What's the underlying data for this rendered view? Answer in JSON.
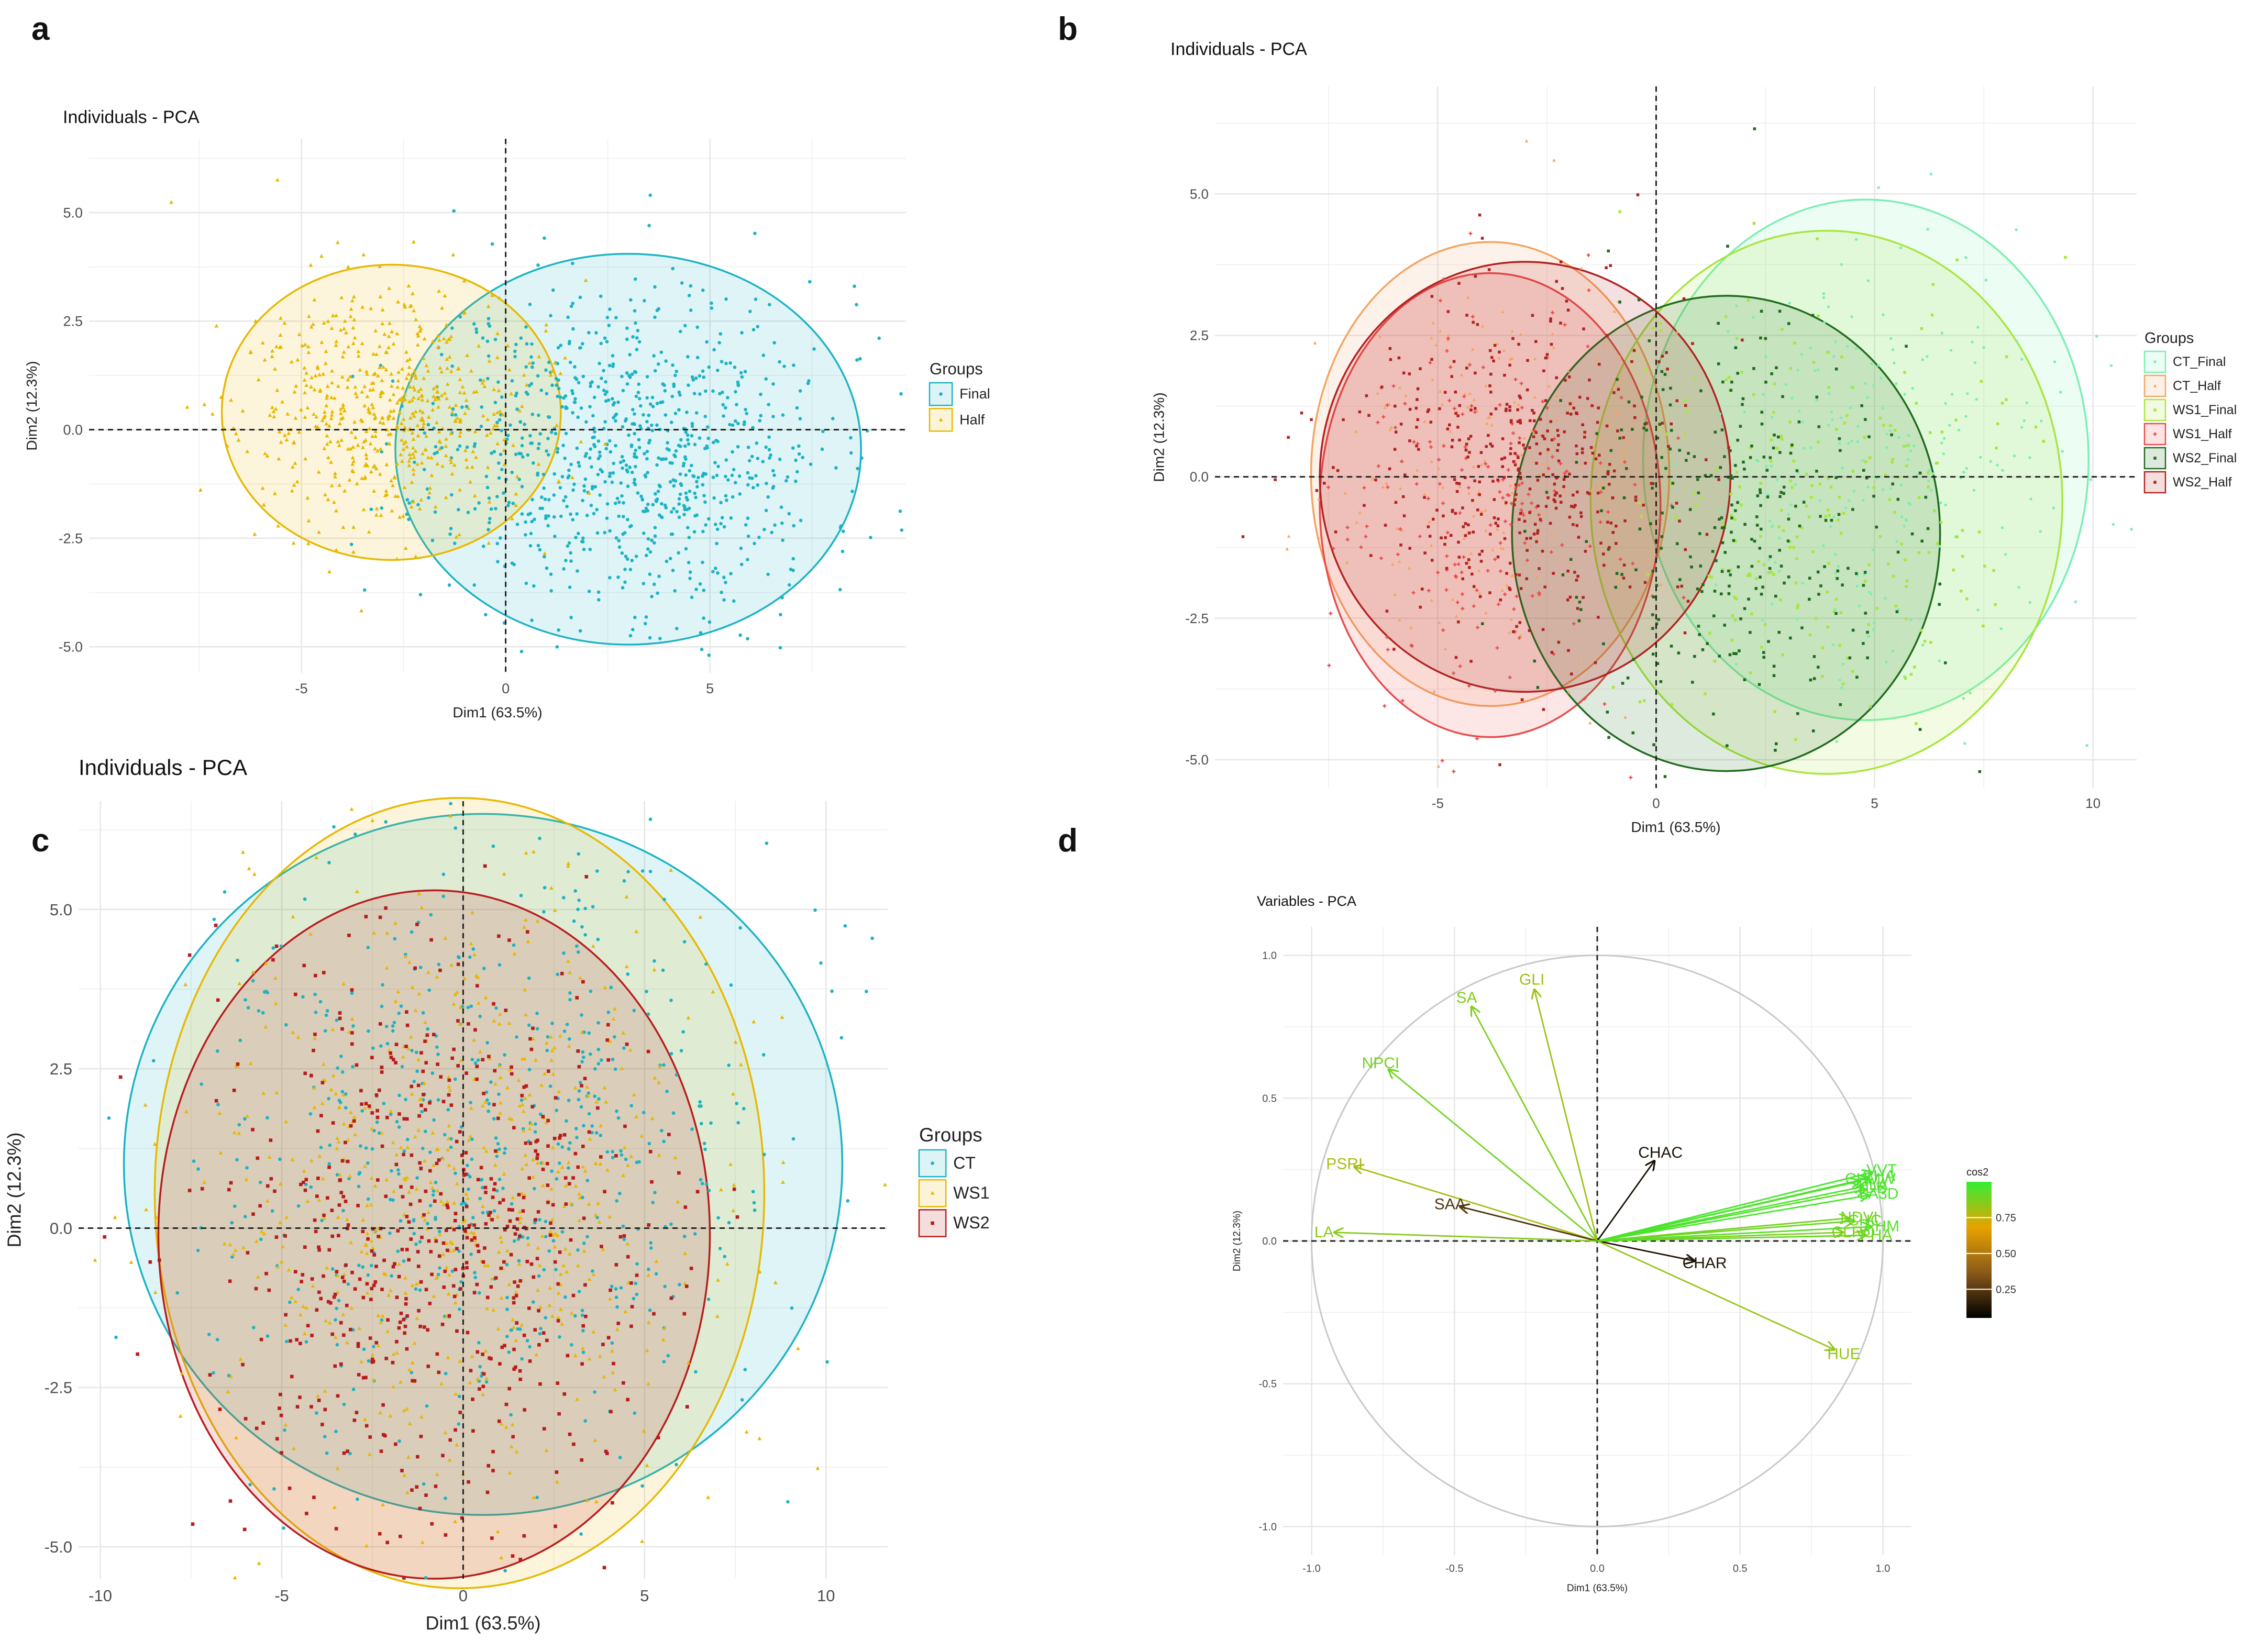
{
  "panel_labels": [
    "a",
    "b",
    "c",
    "d"
  ],
  "chart_data": [
    {
      "panel": "a",
      "type": "scatter",
      "title": "Individuals - PCA",
      "xlabel": "Dim1 (63.5%)",
      "ylabel": "Dim2 (12.3%)",
      "xlim": [
        -10.2,
        9.8
      ],
      "ylim": [
        -5.6,
        6.7
      ],
      "xticks": [
        -5,
        0,
        5
      ],
      "yticks": [
        -5.0,
        -2.5,
        0.0,
        2.5,
        5.0
      ],
      "xtick_labels": [
        "-5",
        "0",
        "5"
      ],
      "ytick_labels": [
        "-5.0",
        "-2.5",
        "0.0",
        "2.5",
        "5.0"
      ],
      "grid": true,
      "legend_title": "Groups",
      "legend_position": "right",
      "series": [
        {
          "name": "Final",
          "color": "#1CB3C4",
          "marker": "dot",
          "n_points": 900,
          "ellipse": {
            "cx": 3.0,
            "cy": -0.45,
            "rx": 5.7,
            "ry": 4.5,
            "angle": 0
          }
        },
        {
          "name": "Half",
          "color": "#E7B800",
          "marker": "triangle",
          "n_points": 600,
          "ellipse": {
            "cx": -2.8,
            "cy": 0.4,
            "rx": 4.15,
            "ry": 3.4,
            "angle": 0
          }
        }
      ]
    },
    {
      "panel": "b",
      "type": "scatter",
      "title": "Individuals - PCA",
      "xlabel": "Dim1 (63.5%)",
      "ylabel": "Dim2 (12.3%)",
      "xlim": [
        -10.1,
        11
      ],
      "ylim": [
        -5.5,
        6.9
      ],
      "xticks": [
        -5,
        0,
        5,
        10
      ],
      "yticks": [
        -5.0,
        -2.5,
        0.0,
        2.5,
        5.0
      ],
      "xtick_labels": [
        "-5",
        "0",
        "5",
        "10"
      ],
      "ytick_labels": [
        "-5.0",
        "-2.5",
        "0.0",
        "2.5",
        "5.0"
      ],
      "grid": true,
      "legend_title": "Groups",
      "legend_position": "right",
      "series": [
        {
          "name": "CT_Final",
          "color": "#7BEFB2",
          "marker": "dot",
          "n_points": 220,
          "ellipse": {
            "cx": 4.8,
            "cy": 0.3,
            "rx": 5.1,
            "ry": 4.6,
            "angle": 0
          }
        },
        {
          "name": "CT_Half",
          "color": "#F4A460",
          "marker": "triangle",
          "n_points": 180,
          "ellipse": {
            "cx": -3.8,
            "cy": 0.05,
            "rx": 4.1,
            "ry": 4.1,
            "angle": 0
          }
        },
        {
          "name": "WS1_Final",
          "color": "#A8E63C",
          "marker": "square",
          "n_points": 220,
          "ellipse": {
            "cx": 3.9,
            "cy": -0.45,
            "rx": 5.4,
            "ry": 4.8,
            "angle": 0
          }
        },
        {
          "name": "WS1_Half",
          "color": "#E94B4B",
          "marker": "plus",
          "n_points": 180,
          "ellipse": {
            "cx": -3.8,
            "cy": -0.5,
            "rx": 3.9,
            "ry": 4.1,
            "angle": 0
          }
        },
        {
          "name": "WS2_Final",
          "color": "#1E6B1E",
          "marker": "square",
          "n_points": 300,
          "ellipse": {
            "cx": 1.6,
            "cy": -1.0,
            "rx": 4.9,
            "ry": 4.2,
            "angle": 0
          }
        },
        {
          "name": "WS2_Half",
          "color": "#B22222",
          "marker": "square",
          "n_points": 420,
          "ellipse": {
            "cx": -3.0,
            "cy": 0.0,
            "rx": 4.7,
            "ry": 3.8,
            "angle": 0
          }
        }
      ]
    },
    {
      "panel": "c",
      "type": "scatter",
      "title": "Individuals - PCA",
      "xlabel": "Dim1 (63.5%)",
      "ylabel": "Dim2 (12.3%)",
      "xlim": [
        -10.6,
        11.7
      ],
      "ylim": [
        -5.5,
        6.7
      ],
      "xticks": [
        -10,
        -5,
        0,
        5,
        10
      ],
      "yticks": [
        -5.0,
        -2.5,
        0.0,
        2.5,
        5.0
      ],
      "xtick_labels": [
        "-10",
        "-5",
        "0",
        "5",
        "10"
      ],
      "ytick_labels": [
        "-5.0",
        "-2.5",
        "0.0",
        "2.5",
        "5.0"
      ],
      "grid": true,
      "legend_title": "Groups",
      "legend_position": "right",
      "series": [
        {
          "name": "CT",
          "color": "#1CB3C4",
          "marker": "dot",
          "n_points": 600,
          "ellipse": {
            "cx": 0.55,
            "cy": 1.0,
            "rx": 9.9,
            "ry": 5.5,
            "angle": 0
          }
        },
        {
          "name": "WS1",
          "color": "#E7B800",
          "marker": "triangle",
          "n_points": 600,
          "ellipse": {
            "cx": -0.1,
            "cy": 0.55,
            "rx": 8.4,
            "ry": 6.2,
            "angle": 0
          }
        },
        {
          "name": "WS2",
          "color": "#B81C1C",
          "marker": "square",
          "n_points": 600,
          "ellipse": {
            "cx": -0.8,
            "cy": -0.1,
            "rx": 7.6,
            "ry": 5.4,
            "angle": 0
          }
        }
      ]
    },
    {
      "panel": "d",
      "type": "scatter",
      "title": "Variables - PCA",
      "xlabel": "Dim1 (63.5%)",
      "ylabel": "Dim2 (12.3%)",
      "xlim": [
        -1.1,
        1.1
      ],
      "ylim": [
        -1.1,
        1.1
      ],
      "xticks": [
        -1.0,
        -0.5,
        0.0,
        0.5,
        1.0
      ],
      "yticks": [
        -1.0,
        -0.5,
        0.0,
        0.5,
        1.0
      ],
      "xtick_labels": [
        "-1.0",
        "-0.5",
        "0.0",
        "0.5",
        "1.0"
      ],
      "ytick_labels": [
        "-1.0",
        "-0.5",
        "0.0",
        "0.5",
        "1.0"
      ],
      "grid": true,
      "legend_title": "cos2",
      "legend_position": "right",
      "colorbar_ticks": [
        0.25,
        0.5,
        0.75
      ],
      "colorbar_tick_labels": [
        "0.25",
        "0.50",
        "0.75"
      ],
      "colorbar_colors": [
        "#000000",
        "#8B5A1A",
        "#E7A300",
        "#33EE33"
      ],
      "arrows": [
        {
          "label": "SA",
          "x": -0.44,
          "y": 0.82,
          "cos2": 0.87
        },
        {
          "label": "GLI",
          "x": -0.22,
          "y": 0.88,
          "cos2": 0.82
        },
        {
          "label": "NPCI",
          "x": -0.73,
          "y": 0.6,
          "cos2": 0.89
        },
        {
          "label": "PSRI",
          "x": -0.85,
          "y": 0.26,
          "cos2": 0.79
        },
        {
          "label": "SAA",
          "x": -0.48,
          "y": 0.12,
          "cos2": 0.24
        },
        {
          "label": "LA",
          "x": -0.92,
          "y": 0.03,
          "cos2": 0.85
        },
        {
          "label": "CHAC",
          "x": 0.2,
          "y": 0.28,
          "cos2": 0.11
        },
        {
          "label": "CHAR",
          "x": 0.34,
          "y": -0.07,
          "cos2": 0.12
        },
        {
          "label": "HUE",
          "x": 0.83,
          "y": -0.38,
          "cos2": 0.83
        },
        {
          "label": "VVT",
          "x": 0.96,
          "y": 0.24,
          "cos2": 0.97
        },
        {
          "label": "CHA",
          "x": 0.95,
          "y": 0.22,
          "cos2": 0.96
        },
        {
          "label": "CHMW",
          "x": 0.92,
          "y": 0.21,
          "cos2": 0.95
        },
        {
          "label": "PLA",
          "x": 0.93,
          "y": 0.19,
          "cos2": 0.96
        },
        {
          "label": "DB",
          "x": 0.94,
          "y": 0.18,
          "cos2": 0.94
        },
        {
          "label": "LA3D",
          "x": 0.95,
          "y": 0.16,
          "cos2": 0.96
        },
        {
          "label": "NDVI",
          "x": 0.88,
          "y": 0.08,
          "cos2": 0.88
        },
        {
          "label": "CHC",
          "x": 0.9,
          "y": 0.07,
          "cos2": 0.9
        },
        {
          "label": "CLRO",
          "x": 0.86,
          "y": 0.03,
          "cos2": 0.86
        },
        {
          "label": "PHM",
          "x": 0.96,
          "y": 0.05,
          "cos2": 0.94
        },
        {
          "label": "PHA",
          "x": 0.94,
          "y": 0.02,
          "cos2": 0.91
        }
      ]
    }
  ]
}
